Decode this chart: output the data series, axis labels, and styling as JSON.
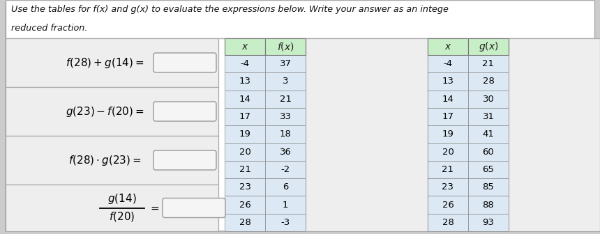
{
  "title_line1": "Use the tables for f(x) and g(x) to evaluate the expressions below. Write your answer as an intege",
  "title_line2": "reduced fraction.",
  "fx_data": [
    [
      -4,
      37
    ],
    [
      13,
      3
    ],
    [
      14,
      21
    ],
    [
      17,
      33
    ],
    [
      19,
      18
    ],
    [
      20,
      36
    ],
    [
      21,
      -2
    ],
    [
      23,
      6
    ],
    [
      26,
      1
    ],
    [
      28,
      -3
    ]
  ],
  "gx_data": [
    [
      -4,
      21
    ],
    [
      13,
      28
    ],
    [
      14,
      30
    ],
    [
      17,
      31
    ],
    [
      19,
      41
    ],
    [
      20,
      60
    ],
    [
      21,
      65
    ],
    [
      23,
      85
    ],
    [
      26,
      88
    ],
    [
      28,
      93
    ]
  ],
  "header_color": "#c8eec8",
  "row_color": "#dce9f5",
  "border_color": "#888888",
  "bg_color": "#d8d8d8",
  "answer_box_color": "#e0e0e0",
  "answer_box_border": "#aaaaaa",
  "left_panel_bg": "#e8e8e8",
  "outer_border": "#aaaaaa",
  "title_bg": "#ffffff",
  "panel_bg": "#f0f0f0",
  "figw": 8.6,
  "figh": 3.36,
  "dpi": 100
}
